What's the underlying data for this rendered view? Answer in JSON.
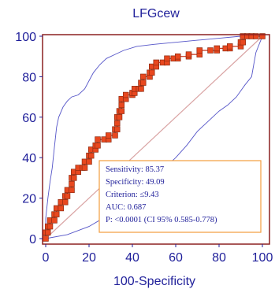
{
  "chart_data": {
    "type": "line",
    "title": "LFGcew",
    "xlabel": "100-Specificity",
    "ylabel": "",
    "xlim": [
      0,
      100
    ],
    "ylim": [
      0,
      100
    ],
    "x_ticks": [
      "0",
      "20",
      "40",
      "60",
      "80",
      "100"
    ],
    "y_ticks": [
      "0",
      "20",
      "40",
      "60",
      "80",
      "100"
    ],
    "series": [
      {
        "role": "roc",
        "color": "#e8481f",
        "marker_color": "#e8481f",
        "points": [
          [
            0,
            0
          ],
          [
            0,
            3
          ],
          [
            1,
            3
          ],
          [
            1,
            6
          ],
          [
            2,
            6
          ],
          [
            2,
            9
          ],
          [
            4,
            9
          ],
          [
            4,
            12
          ],
          [
            5,
            12
          ],
          [
            5,
            15
          ],
          [
            7,
            15
          ],
          [
            7,
            18
          ],
          [
            9,
            18
          ],
          [
            9,
            21
          ],
          [
            10,
            21
          ],
          [
            10,
            24
          ],
          [
            12,
            24
          ],
          [
            12,
            27
          ],
          [
            12,
            30
          ],
          [
            13,
            30
          ],
          [
            13,
            33
          ],
          [
            15,
            33
          ],
          [
            15,
            35
          ],
          [
            17,
            35
          ],
          [
            18,
            35
          ],
          [
            18,
            38
          ],
          [
            20,
            38
          ],
          [
            20,
            41
          ],
          [
            21,
            41
          ],
          [
            21,
            44
          ],
          [
            23,
            44
          ],
          [
            23,
            46
          ],
          [
            24,
            46
          ],
          [
            24,
            49
          ],
          [
            27,
            49
          ],
          [
            29,
            49
          ],
          [
            29,
            51
          ],
          [
            32,
            51
          ],
          [
            32,
            54
          ],
          [
            33,
            54
          ],
          [
            33,
            57
          ],
          [
            33,
            60
          ],
          [
            34,
            60
          ],
          [
            34,
            63
          ],
          [
            35,
            63
          ],
          [
            35,
            66
          ],
          [
            35,
            69
          ],
          [
            37,
            69
          ],
          [
            37,
            71
          ],
          [
            40,
            71
          ],
          [
            40,
            72
          ],
          [
            41,
            72
          ],
          [
            41,
            74
          ],
          [
            43,
            74
          ],
          [
            44,
            74
          ],
          [
            44,
            77
          ],
          [
            45,
            77
          ],
          [
            45,
            80
          ],
          [
            48,
            80
          ],
          [
            48,
            82
          ],
          [
            49,
            82
          ],
          [
            49,
            85
          ],
          [
            51,
            85
          ],
          [
            51,
            87
          ],
          [
            54,
            87
          ],
          [
            56,
            87
          ],
          [
            56,
            89
          ],
          [
            59,
            89
          ],
          [
            61,
            89
          ],
          [
            61,
            90
          ],
          [
            66,
            90
          ],
          [
            66,
            91
          ],
          [
            71,
            91
          ],
          [
            71,
            93
          ],
          [
            76,
            93
          ],
          [
            79,
            93
          ],
          [
            79,
            94
          ],
          [
            83,
            94
          ],
          [
            85,
            94
          ],
          [
            85,
            95
          ],
          [
            90,
            95
          ],
          [
            90,
            97
          ],
          [
            91,
            97
          ],
          [
            91,
            100
          ],
          [
            93,
            100
          ],
          [
            95,
            100
          ],
          [
            97,
            100
          ],
          [
            100,
            100
          ]
        ]
      },
      {
        "role": "ci_upper",
        "color": "#5555c8",
        "points": [
          [
            0,
            0
          ],
          [
            0,
            10
          ],
          [
            1,
            20
          ],
          [
            2,
            28
          ],
          [
            3,
            35
          ],
          [
            4,
            45
          ],
          [
            5,
            55
          ],
          [
            6,
            60
          ],
          [
            8,
            65
          ],
          [
            10,
            68
          ],
          [
            12,
            70
          ],
          [
            15,
            71
          ],
          [
            18,
            74
          ],
          [
            20,
            78
          ],
          [
            22,
            82
          ],
          [
            25,
            86
          ],
          [
            28,
            89
          ],
          [
            32,
            91
          ],
          [
            36,
            93
          ],
          [
            42,
            95
          ],
          [
            50,
            96
          ],
          [
            60,
            97
          ],
          [
            70,
            98
          ],
          [
            80,
            99
          ],
          [
            90,
            100
          ],
          [
            100,
            100
          ]
        ]
      },
      {
        "role": "ci_lower",
        "color": "#5555c8",
        "points": [
          [
            0,
            0
          ],
          [
            10,
            2
          ],
          [
            20,
            6
          ],
          [
            28,
            11
          ],
          [
            33,
            14
          ],
          [
            38,
            20
          ],
          [
            42,
            24
          ],
          [
            46,
            27
          ],
          [
            50,
            30
          ],
          [
            55,
            35
          ],
          [
            60,
            40
          ],
          [
            65,
            46
          ],
          [
            70,
            53
          ],
          [
            75,
            58
          ],
          [
            80,
            63
          ],
          [
            84,
            66
          ],
          [
            88,
            70
          ],
          [
            90,
            73
          ],
          [
            92,
            76
          ],
          [
            95,
            80
          ],
          [
            96,
            86
          ],
          [
            97,
            92
          ],
          [
            100,
            100
          ]
        ]
      },
      {
        "role": "reference_diagonal",
        "color": "#d9a3a3",
        "points": [
          [
            0,
            0
          ],
          [
            100,
            100
          ]
        ]
      }
    ],
    "annotation_box": {
      "border_color": "#f39c3c",
      "lines": [
        "Sensitivity: 85.37",
        "Specificity: 49.09",
        "Criterion: ≤9.43",
        "AUC: 0.687",
        "P: <0.0001 (CI 95% 0.585-0.778)"
      ]
    },
    "grid": false,
    "frame_color": "#8b2020",
    "text_color": "#1f1f9a"
  }
}
